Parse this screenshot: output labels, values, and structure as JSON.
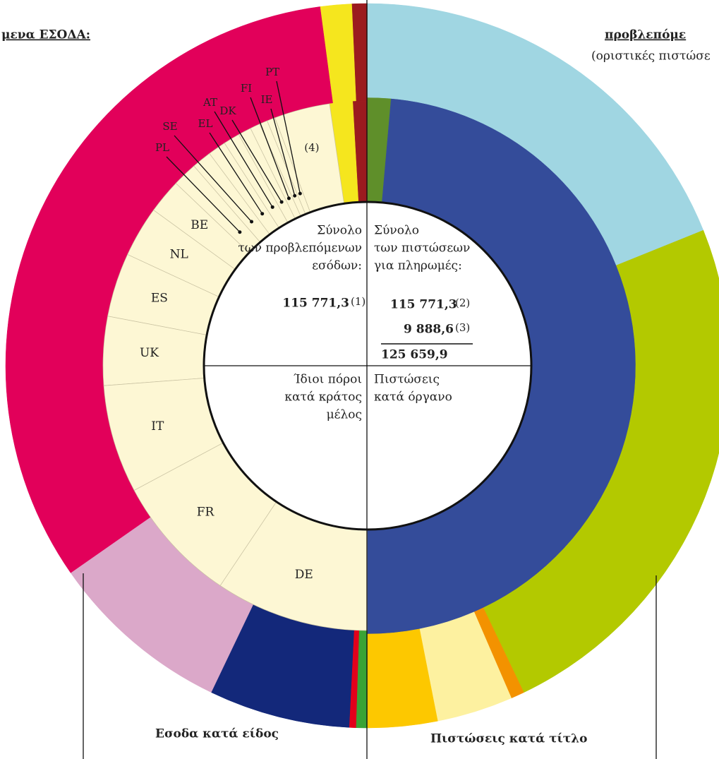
{
  "texts": {
    "left_title": "μενα ΕΣΟΔΑ:",
    "right_title": "προβλεπόμε",
    "right_subtitle": "(οριστικές πιστώσε",
    "revenue_total_lines": [
      "Σύνολο",
      "των προβλεπόμενων",
      "εσόδων:"
    ],
    "revenue_total": "115 771,3",
    "revenue_total_note": "(1)",
    "payments_total_lines": [
      "Σύνολο",
      "των πιστώσεων",
      "για πληρωμές:"
    ],
    "payments_total": "115 771,3",
    "payments_total_note": "(2)",
    "extra_total": "9 888,6",
    "extra_total_note": "(3)",
    "grand_total": "125 659,9",
    "own_resources_lines": [
      "Ίδιοι πόροι",
      "κατά κράτος",
      "μέλος"
    ],
    "appropriations_lines": [
      "Πιστώσεις",
      "κατά όργανο"
    ],
    "revenue_by_type": "Εσοδα κατά είδος",
    "appropriations_by_title": "Πιστώσεις κατά τίτλο"
  },
  "chart_data": [
    {
      "type": "donut",
      "side": "left",
      "categories": [
        null,
        null,
        null,
        null,
        null,
        null,
        null
      ],
      "values": [
        0.7,
        1.4,
        32.6,
        8.2,
        6.3,
        0.3,
        0.5
      ],
      "colors": [
        "#9b1b1f",
        "#f5e61e",
        "#e2005a",
        "#dba8c9",
        "#13287a",
        "#e3001b",
        "#3aa335"
      ]
    },
    {
      "type": "donut",
      "side": "left",
      "categories": [
        null,
        null,
        "(4)",
        "PT",
        "IE",
        "FI",
        "DK",
        "AT",
        "EL",
        "SE",
        "PL",
        "BE",
        "NL",
        "ES",
        "UK",
        "IT",
        "FR",
        "DE"
      ],
      "values": [
        0.9,
        1.4,
        3.4,
        0.5,
        0.5,
        0.6,
        0.8,
        1.0,
        1.1,
        1.2,
        1.5,
        2.1,
        3.1,
        3.9,
        4.2,
        6.6,
        7.8,
        9.4
      ],
      "colors": [
        "#9b1b1f",
        "#f5e61e",
        "#fdf7d4",
        "#fdf7d4",
        "#fdf7d4",
        "#fdf7d4",
        "#fdf7d4",
        "#fdf7d4",
        "#fdf7d4",
        "#fdf7d4",
        "#fdf7d4",
        "#fdf7d4",
        "#fdf7d4",
        "#fdf7d4",
        "#fdf7d4",
        "#fdf7d4",
        "#fdf7d4",
        "#fdf7d4"
      ]
    },
    {
      "type": "donut",
      "side": "right",
      "categories": [
        null,
        null
      ],
      "values": [
        1.4,
        48.6
      ],
      "colors": [
        "#5f8f2a",
        "#344c9a"
      ]
    },
    {
      "type": "donut",
      "side": "right",
      "categories": [
        null,
        null,
        null,
        null,
        null
      ],
      "values": [
        18.9,
        24.0,
        0.6,
        3.4,
        3.1
      ],
      "colors": [
        "#a0d6e2",
        "#b3c900",
        "#f39200",
        "#fdf1a0",
        "#fdc800"
      ]
    }
  ]
}
